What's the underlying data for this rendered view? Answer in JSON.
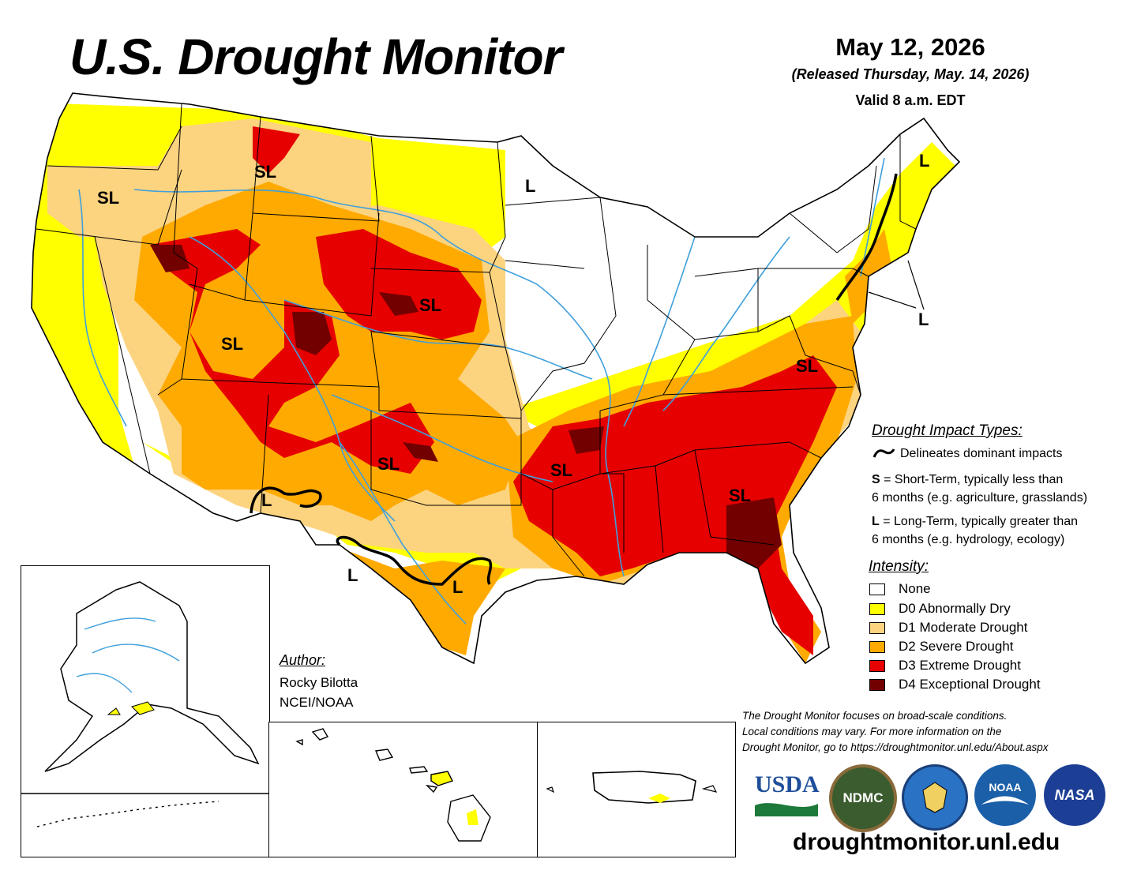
{
  "header": {
    "title": "U.S. Drought Monitor",
    "date": "May 12, 2026",
    "released": "(Released Thursday, May. 14, 2026)",
    "valid": "Valid 8 a.m. EDT"
  },
  "map_labels": [
    "SL",
    "SL",
    "SL",
    "SL",
    "SL",
    "SL",
    "SL",
    "SL",
    "L",
    "L",
    "L",
    "L",
    "L",
    "L"
  ],
  "impact": {
    "title": "Drought Impact Types:",
    "line_text": "Delineates dominant impacts",
    "s_key": "S",
    "s_text": "= Short-Term, typically less than",
    "s_text2": "6 months (e.g. agriculture, grasslands)",
    "l_key": "L",
    "l_text": "= Long-Term, typically greater than",
    "l_text2": "6 months (e.g. hydrology, ecology)"
  },
  "intensity": {
    "title": "Intensity:",
    "items": [
      {
        "label": "None",
        "color": "#ffffff"
      },
      {
        "label": "D0 Abnormally Dry",
        "color": "#ffff00"
      },
      {
        "label": "D1 Moderate Drought",
        "color": "#fcd37f"
      },
      {
        "label": "D2 Severe Drought",
        "color": "#ffaa00"
      },
      {
        "label": "D3 Extreme Drought",
        "color": "#e60000"
      },
      {
        "label": "D4 Exceptional Drought",
        "color": "#730000"
      }
    ]
  },
  "author": {
    "heading": "Author:",
    "name": "Rocky Bilotta",
    "org": "NCEI/NOAA"
  },
  "disclaimer": {
    "line1": "The Drought Monitor focuses on broad-scale conditions.",
    "line2": "Local conditions may vary. For more information on the",
    "line3": "Drought Monitor, go to https://droughtmonitor.unl.edu/About.aspx"
  },
  "logos": {
    "usda": "USDA",
    "ndmc": "NDMC",
    "noaa": "NOAA",
    "nasa": "NASA"
  },
  "site": "droughtmonitor.unl.edu",
  "colors": {
    "none": "#ffffff",
    "d0": "#ffff00",
    "d1": "#fcd37f",
    "d2": "#ffaa00",
    "d3": "#e60000",
    "d4": "#730000",
    "river": "#3fa0dc"
  }
}
